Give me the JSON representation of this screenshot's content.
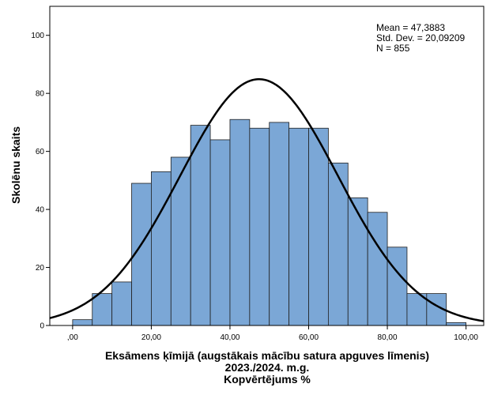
{
  "chart_data": {
    "type": "bar",
    "subtype": "histogram",
    "bins": [
      {
        "x0": 0,
        "x1": 5,
        "count": 2
      },
      {
        "x0": 5,
        "x1": 10,
        "count": 11
      },
      {
        "x0": 10,
        "x1": 15,
        "count": 15
      },
      {
        "x0": 15,
        "x1": 20,
        "count": 49
      },
      {
        "x0": 20,
        "x1": 25,
        "count": 53
      },
      {
        "x0": 25,
        "x1": 30,
        "count": 58
      },
      {
        "x0": 30,
        "x1": 35,
        "count": 69
      },
      {
        "x0": 35,
        "x1": 40,
        "count": 64
      },
      {
        "x0": 40,
        "x1": 45,
        "count": 71
      },
      {
        "x0": 45,
        "x1": 50,
        "count": 68
      },
      {
        "x0": 50,
        "x1": 55,
        "count": 70
      },
      {
        "x0": 55,
        "x1": 60,
        "count": 68
      },
      {
        "x0": 60,
        "x1": 65,
        "count": 68
      },
      {
        "x0": 65,
        "x1": 70,
        "count": 56
      },
      {
        "x0": 70,
        "x1": 75,
        "count": 44
      },
      {
        "x0": 75,
        "x1": 80,
        "count": 39
      },
      {
        "x0": 80,
        "x1": 85,
        "count": 27
      },
      {
        "x0": 85,
        "x1": 90,
        "count": 11
      },
      {
        "x0": 90,
        "x1": 95,
        "count": 11
      },
      {
        "x0": 95,
        "x1": 100,
        "count": 1
      }
    ],
    "normal_curve": {
      "mean": 47.3883,
      "std_dev": 20.09209,
      "n": 855,
      "bin_width": 5
    },
    "stats_lines": [
      "Mean = 47,3883",
      "Std. Dev. = 20,09209",
      "N = 855"
    ],
    "xlabel_lines": [
      "Eksāmens ķīmijā (augstākais mācību satura apguves līmenis)",
      "2023./2024. m.g.",
      "Kopvērtējums %"
    ],
    "ylabel": "Skolēnu skaits",
    "x_ticks": [
      0,
      20,
      40,
      60,
      80,
      100
    ],
    "x_tick_labels": [
      ",00",
      "20,00",
      "40,00",
      "60,00",
      "80,00",
      "100,00"
    ],
    "y_ticks": [
      0,
      20,
      40,
      60,
      80,
      100
    ],
    "y_tick_labels": [
      "0",
      "20",
      "40",
      "60",
      "80",
      "100"
    ],
    "xlim": [
      -5.8,
      104.5
    ],
    "ylim": [
      0,
      110
    ],
    "grid": false,
    "colors": {
      "bar_fill": "#7ba7d6",
      "bar_stroke": "#1f1f1f",
      "curve": "#000000",
      "background": "#ffffff"
    }
  }
}
